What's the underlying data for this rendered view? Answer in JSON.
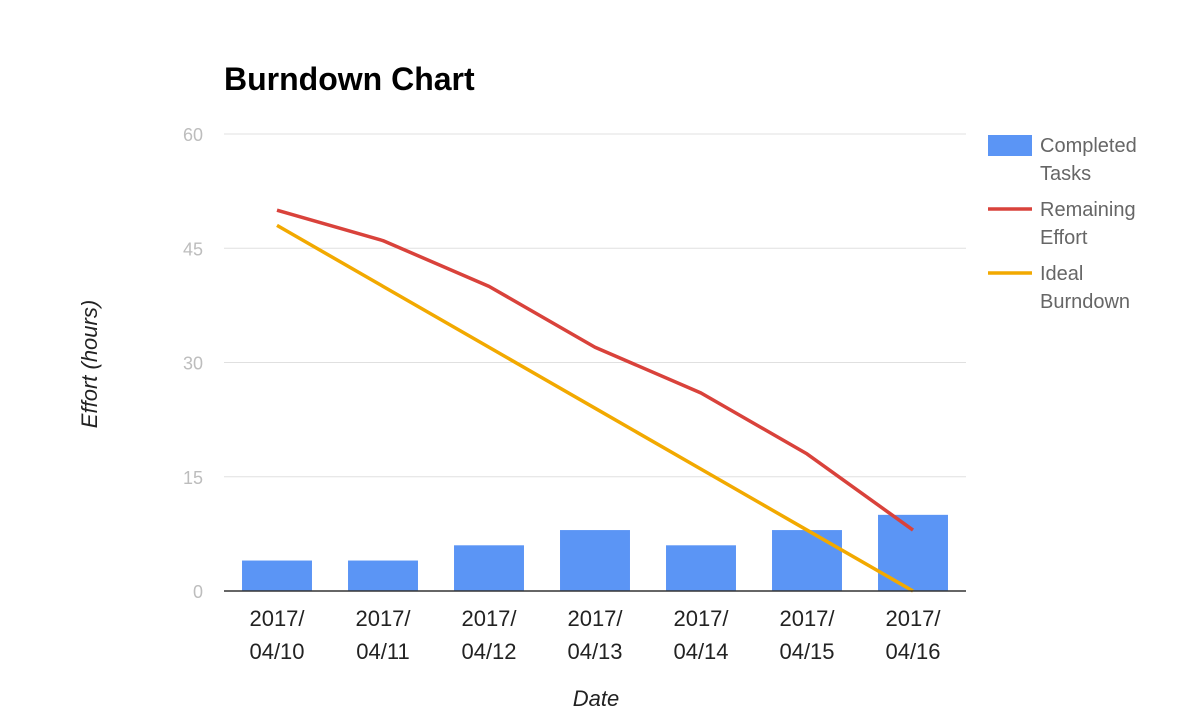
{
  "chart_data": {
    "type": "bar",
    "title": "Burndown Chart",
    "xlabel": "Date",
    "ylabel": "Effort (hours)",
    "ylim": [
      0,
      60
    ],
    "yticks": [
      "0",
      "15",
      "30",
      "45",
      "60"
    ],
    "grid": true,
    "legend_position": "right",
    "categories": [
      [
        "2017/",
        "04/10"
      ],
      [
        "2017/",
        "04/11"
      ],
      [
        "2017/",
        "04/12"
      ],
      [
        "2017/",
        "04/13"
      ],
      [
        "2017/",
        "04/14"
      ],
      [
        "2017/",
        "04/15"
      ],
      [
        "2017/",
        "04/16"
      ]
    ],
    "series": [
      {
        "name": [
          "Completed",
          "Tasks"
        ],
        "kind": "bar",
        "color": "#5b95f5",
        "values": [
          4,
          4,
          6,
          8,
          6,
          8,
          10
        ]
      },
      {
        "name": [
          "Remaining",
          "Effort"
        ],
        "kind": "line",
        "color": "#d9423b",
        "values": [
          50,
          46,
          40,
          32,
          26,
          18,
          8
        ]
      },
      {
        "name": [
          "Ideal",
          "Burndown"
        ],
        "kind": "line",
        "color": "#f2a900",
        "values": [
          48,
          40,
          32,
          24,
          16,
          8,
          0
        ]
      }
    ]
  }
}
